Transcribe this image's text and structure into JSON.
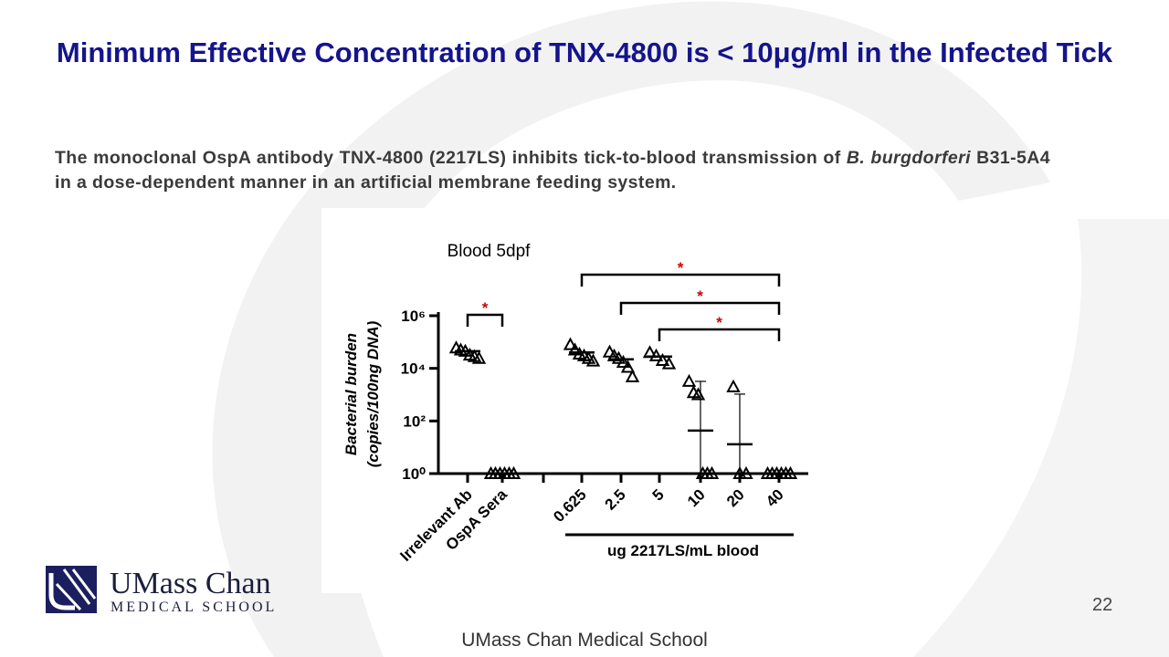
{
  "slide": {
    "title": "Minimum Effective Concentration of TNX-4800 is < 10μg/ml in the Infected Tick",
    "body": [
      "The monoclonal OspA antibody TNX-4800 (2217LS) inhibits tick-to-blood transmission of ",
      "B. burgdorferi",
      " B31-5A4 in a dose-dependent manner in an artificial membrane feeding system."
    ],
    "logo": {
      "name": "UMass Chan",
      "subtitle": "MEDICAL SCHOOL"
    },
    "page_number": "22",
    "footer": "UMass Chan Medical School"
  },
  "chart_data": {
    "type": "scatter",
    "title": "Blood 5dpf",
    "y_label": [
      "Bacterial burden",
      "(copies/100ng  DNA)"
    ],
    "x_group_label": {
      "label": "ug 2217LS/mL blood",
      "from": "0.625",
      "to": "40"
    },
    "categories": [
      "Irrelevant Ab",
      "OspA Sera",
      "0.625",
      "2.5",
      "5",
      "10",
      "20",
      "40"
    ],
    "series": [
      {
        "color": "#000000",
        "values": [
          [
            60000,
            50000,
            45000,
            32000,
            28000,
            24000
          ],
          [
            1,
            1,
            1,
            1,
            1,
            1
          ],
          [
            80000,
            50000,
            35000,
            30000,
            24000,
            19000
          ],
          [
            42000,
            30000,
            24000,
            17000,
            11000,
            4800
          ],
          [
            40000,
            30000,
            20000,
            15000
          ],
          [
            3200,
            1200,
            1000,
            1,
            1,
            1
          ],
          [
            2000,
            1,
            1
          ],
          [
            1,
            1,
            1,
            1,
            1,
            1
          ]
        ],
        "mean": [
          45000,
          1,
          40000,
          22000,
          28000,
          43,
          13,
          1
        ],
        "error_upper": [
          null,
          null,
          null,
          null,
          null,
          3200,
          1050,
          null
        ]
      }
    ],
    "ylim": [
      1,
      1000000
    ],
    "log_y": true,
    "yticks": [
      {
        "value": 1,
        "label": "10⁰"
      },
      {
        "value": 100,
        "label": "10²"
      },
      {
        "value": 10000,
        "label": "10⁴"
      },
      {
        "value": 1000000,
        "label": "10⁶"
      }
    ],
    "annotations": [
      {
        "label": "*",
        "from": "Irrelevant Ab",
        "to": "OspA Sera",
        "color": "#d00000"
      },
      {
        "label": "*",
        "from": "0.625",
        "to": "40",
        "color": "#d00000"
      },
      {
        "label": "*",
        "from": "2.5",
        "to": "40",
        "color": "#d00000"
      },
      {
        "label": "*",
        "from": "5",
        "to": "40",
        "color": "#d00000"
      }
    ]
  }
}
